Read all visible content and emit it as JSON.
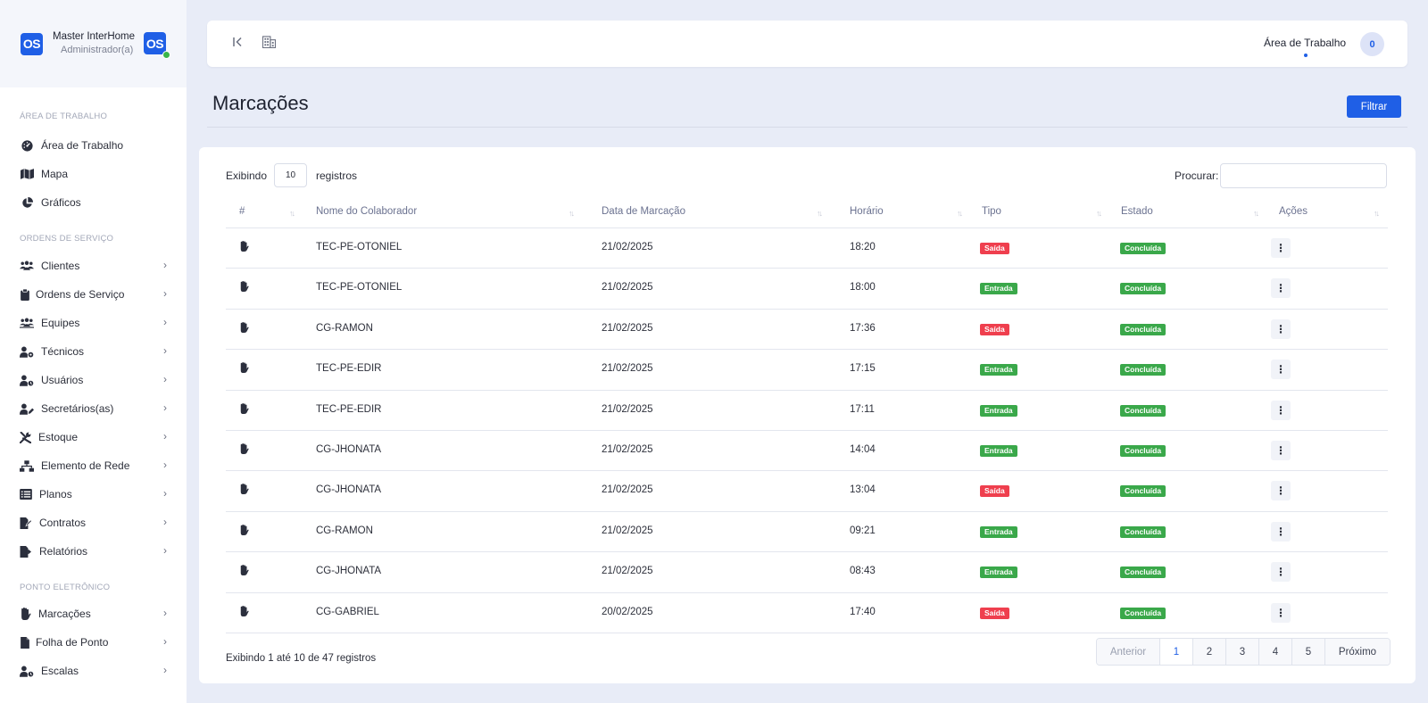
{
  "brand": {
    "logo": "OS",
    "name": "Master InterHome",
    "role": "Administrador(a)",
    "avatar": "OS"
  },
  "sidebar": {
    "sections": [
      {
        "title": "ÁREA DE TRABALHO"
      },
      {
        "title": "ORDENS DE SERVIÇO"
      },
      {
        "title": "PONTO ELETRÔNICO"
      }
    ],
    "items": [
      {
        "label": "Área de Trabalho",
        "icon": "gauge-icon"
      },
      {
        "label": "Mapa",
        "icon": "map-icon"
      },
      {
        "label": "Gráficos",
        "icon": "pie-chart-icon"
      },
      {
        "label": "Clientes",
        "icon": "users-icon"
      },
      {
        "label": "Ordens de Serviço",
        "icon": "clipboard-icon"
      },
      {
        "label": "Equipes",
        "icon": "team-icon"
      },
      {
        "label": "Técnicos",
        "icon": "user-gear-icon"
      },
      {
        "label": "Usuários",
        "icon": "user-clock-icon"
      },
      {
        "label": "Secretários(as)",
        "icon": "user-pen-icon"
      },
      {
        "label": "Estoque",
        "icon": "tools-icon"
      },
      {
        "label": "Elemento de Rede",
        "icon": "network-icon"
      },
      {
        "label": "Planos",
        "icon": "list-icon"
      },
      {
        "label": "Contratos",
        "icon": "file-signature-icon"
      },
      {
        "label": "Relatórios",
        "icon": "file-export-icon"
      },
      {
        "label": "Marcações",
        "icon": "hand-icon"
      },
      {
        "label": "Folha de Ponto",
        "icon": "file-icon"
      },
      {
        "label": "Escalas",
        "icon": "user-clock-icon"
      }
    ]
  },
  "topbar": {
    "workspace_label": "Área de Trabalho",
    "notification_count": "0"
  },
  "page": {
    "title": "Marcações",
    "filter_label": "Filtrar"
  },
  "table_controls": {
    "show_prefix": "Exibindo",
    "page_length": "10",
    "show_suffix": "registros",
    "search_label": "Procurar:"
  },
  "table": {
    "columns": [
      "#",
      "Nome do Colaborador",
      "Data de Marcação",
      "Horário",
      "Tipo",
      "Estado",
      "Ações"
    ],
    "rows": [
      {
        "name": "TEC-PE-OTONIEL",
        "date": "21/02/2025",
        "time": "18:20",
        "type": "Saída",
        "status": "Concluída"
      },
      {
        "name": "TEC-PE-OTONIEL",
        "date": "21/02/2025",
        "time": "18:00",
        "type": "Entrada",
        "status": "Concluída"
      },
      {
        "name": "CG-RAMON",
        "date": "21/02/2025",
        "time": "17:36",
        "type": "Saída",
        "status": "Concluída"
      },
      {
        "name": "TEC-PE-EDIR",
        "date": "21/02/2025",
        "time": "17:15",
        "type": "Entrada",
        "status": "Concluída"
      },
      {
        "name": "TEC-PE-EDIR",
        "date": "21/02/2025",
        "time": "17:11",
        "type": "Entrada",
        "status": "Concluída"
      },
      {
        "name": "CG-JHONATA",
        "date": "21/02/2025",
        "time": "14:04",
        "type": "Entrada",
        "status": "Concluída"
      },
      {
        "name": "CG-JHONATA",
        "date": "21/02/2025",
        "time": "13:04",
        "type": "Saída",
        "status": "Concluída"
      },
      {
        "name": "CG-RAMON",
        "date": "21/02/2025",
        "time": "09:21",
        "type": "Entrada",
        "status": "Concluída"
      },
      {
        "name": "CG-JHONATA",
        "date": "21/02/2025",
        "time": "08:43",
        "type": "Entrada",
        "status": "Concluída"
      },
      {
        "name": "CG-GABRIEL",
        "date": "20/02/2025",
        "time": "17:40",
        "type": "Saída",
        "status": "Concluída"
      }
    ],
    "info": "Exibindo 1 até 10 de 47 registros"
  },
  "pagination": {
    "prev": "Anterior",
    "pages": [
      "1",
      "2",
      "3",
      "4",
      "5"
    ],
    "next": "Próximo",
    "current": "1"
  },
  "colors": {
    "accent": "#1f5fe6",
    "exit": "#ef3f4e",
    "entry": "#3aa84a",
    "done": "#3aa84a"
  }
}
